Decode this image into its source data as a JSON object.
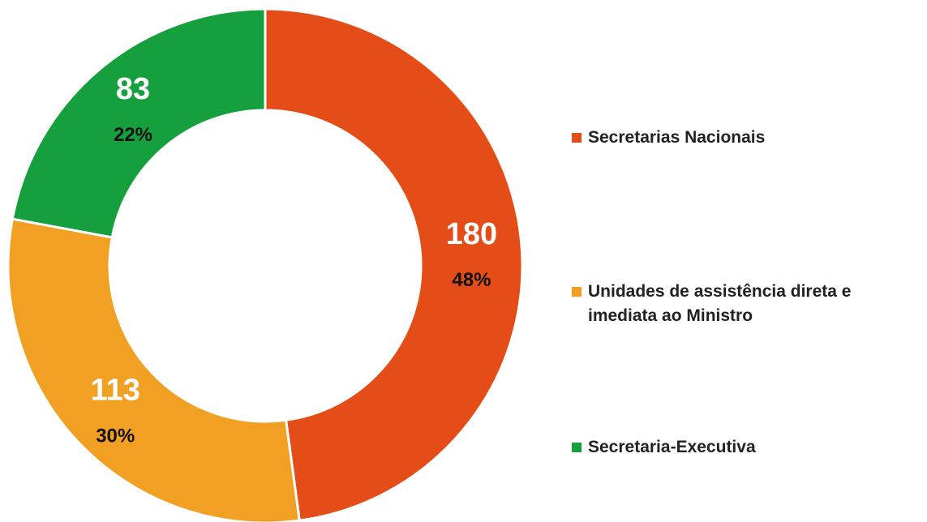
{
  "chart_data": {
    "type": "donut",
    "categories": [
      "Secretarias Nacionais",
      "Unidades de assistência direta e imediata ao Ministro",
      "Secretaria-Executiva"
    ],
    "values": [
      180,
      113,
      83
    ],
    "percentages": [
      48,
      30,
      22
    ],
    "percentage_labels": [
      "48%",
      "30%",
      "22%"
    ],
    "colors": [
      "#e44d17",
      "#f2a024",
      "#16a03d"
    ],
    "legend": "right"
  }
}
